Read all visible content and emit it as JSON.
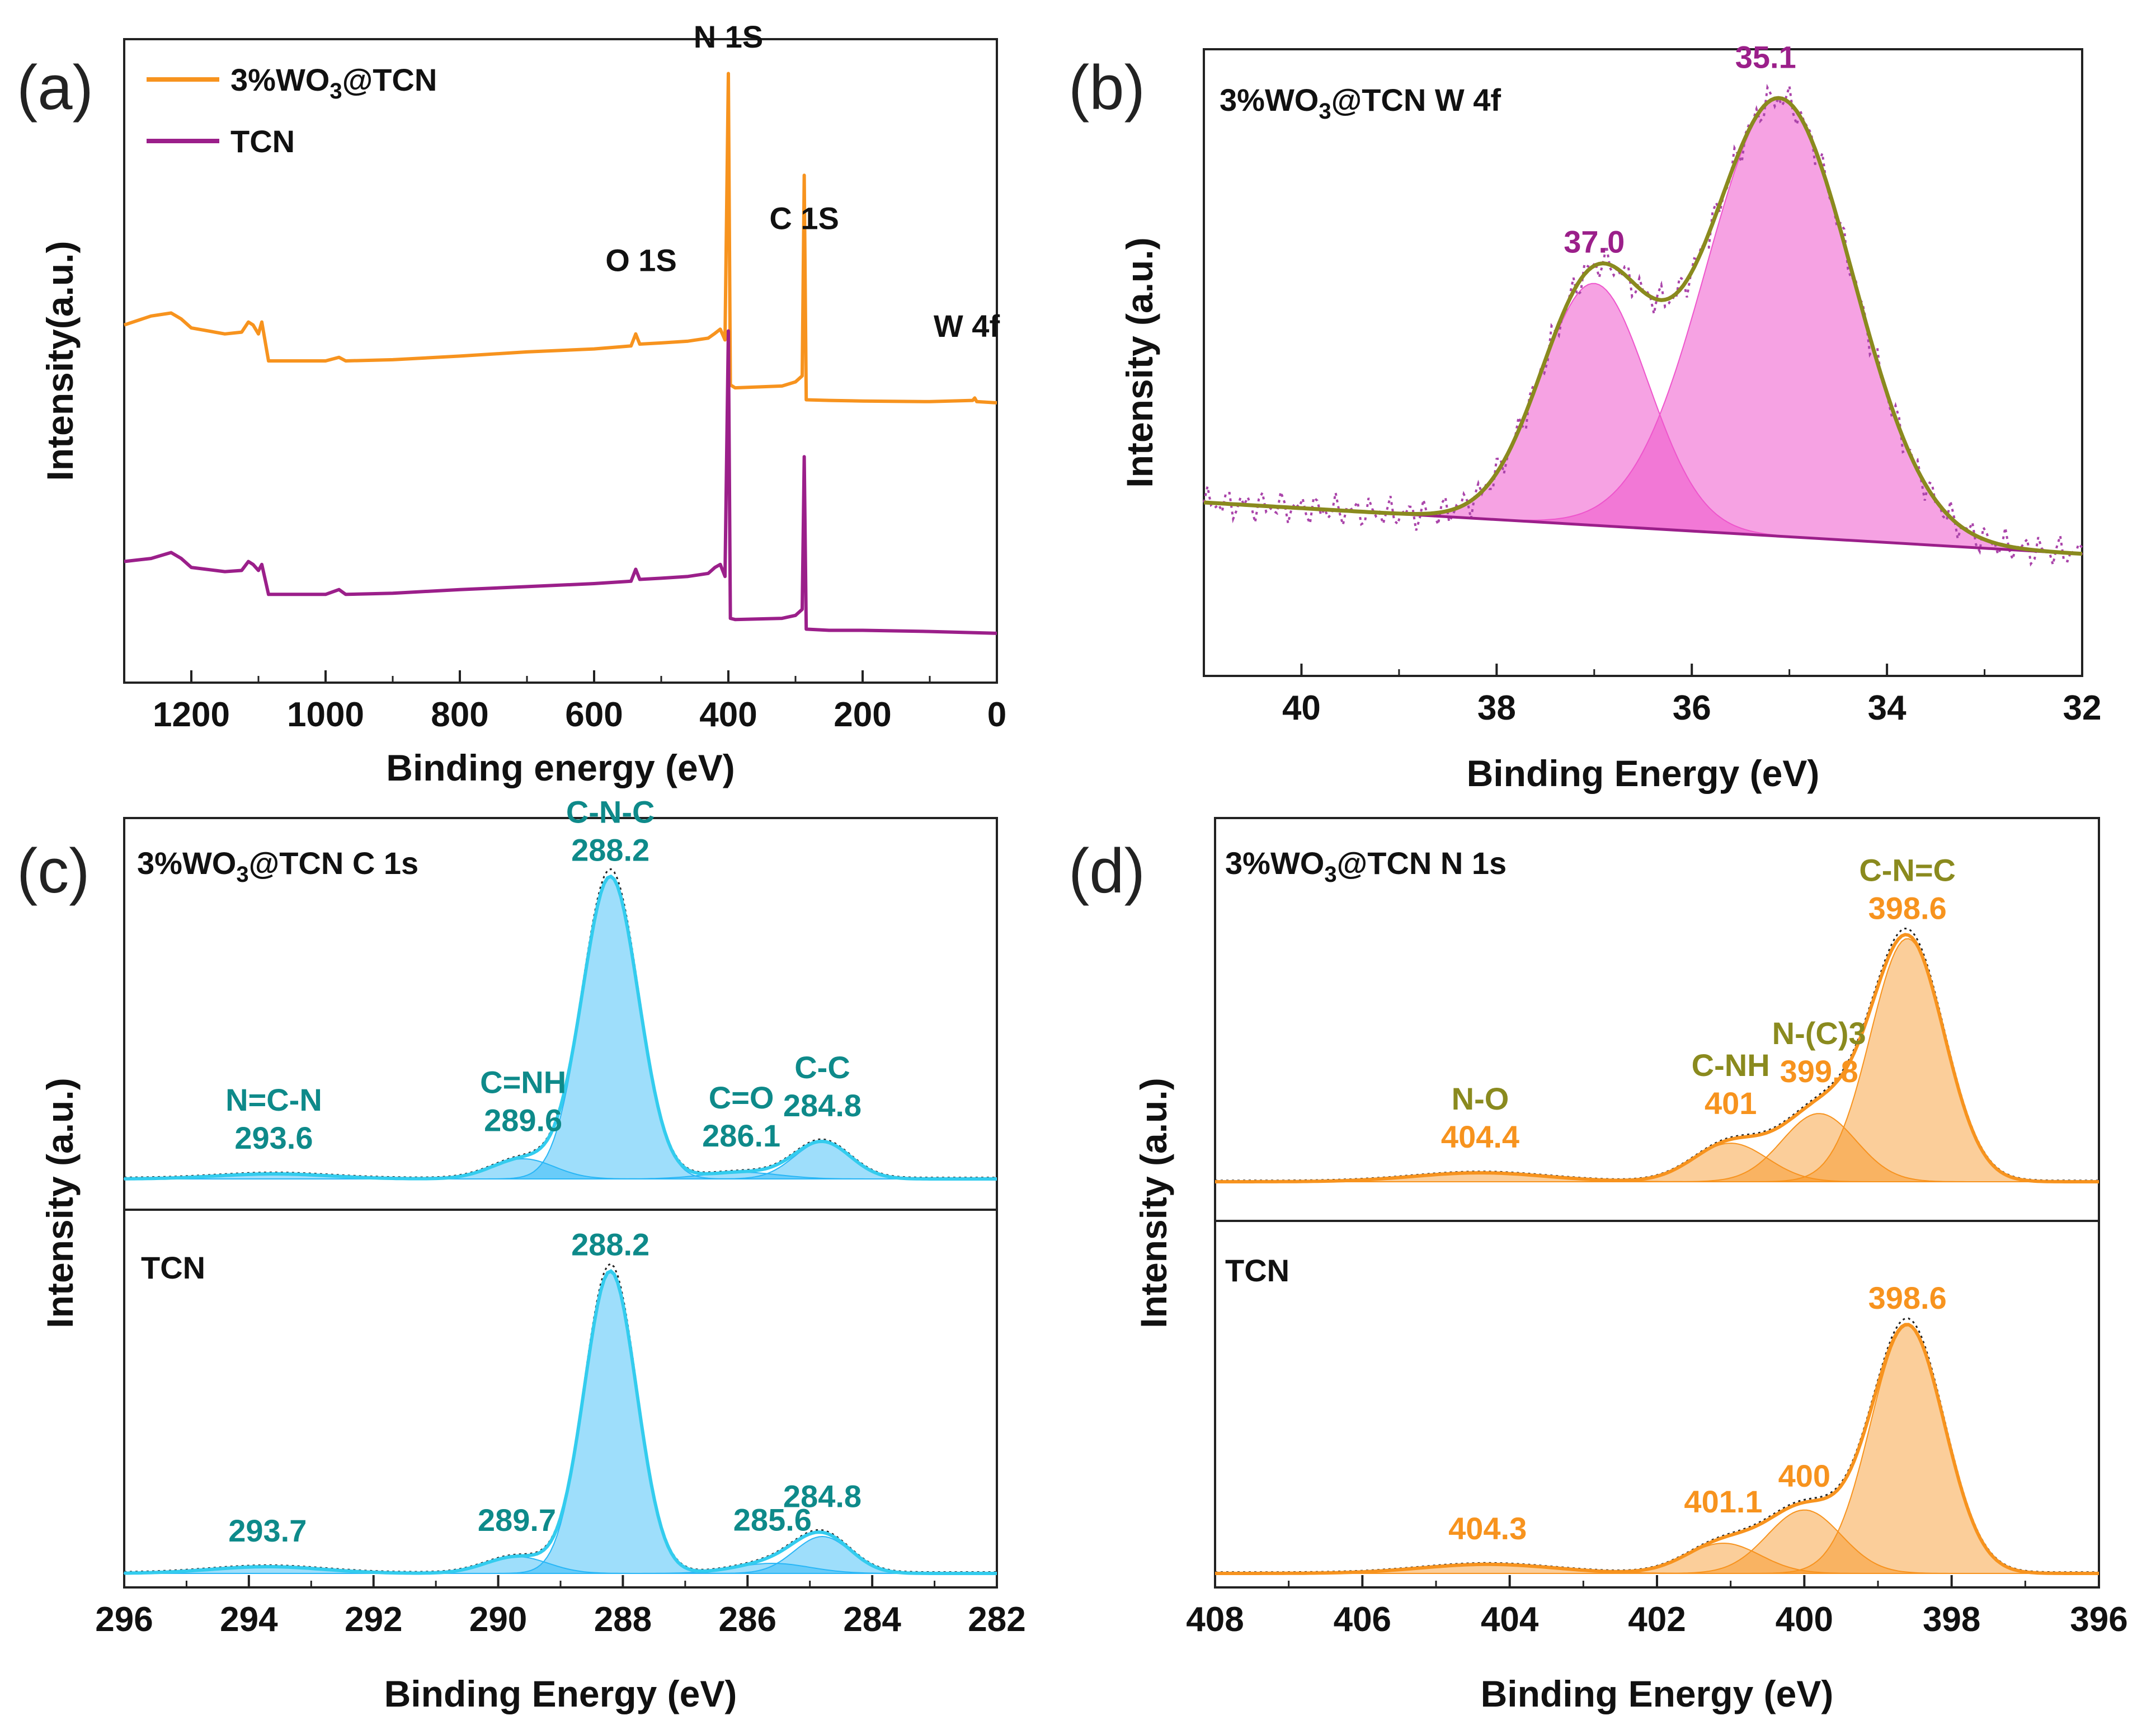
{
  "figure": {
    "panel_labels": [
      "(a)",
      "(b)",
      "(c)",
      "(d)"
    ]
  },
  "chart_data": [
    {
      "panel": "(a)",
      "type": "line",
      "xlabel": "Binding energy (eV)",
      "ylabel": "Intensity(a.u.)",
      "xlim": [
        1300,
        0
      ],
      "xticks": [
        1200,
        1000,
        800,
        600,
        400,
        200,
        0
      ],
      "series": [
        {
          "name": "3%WO3@TCN",
          "legend": {
            "main": "3%WO",
            "sub": "3",
            "rest": "@TCN"
          },
          "color": "#f7931e",
          "baseline": 0.56,
          "points": [
            [
              1300,
              0.56
            ],
            [
              1260,
              0.575
            ],
            [
              1230,
              0.58
            ],
            [
              1215,
              0.57
            ],
            [
              1200,
              0.555
            ],
            [
              1150,
              0.545
            ],
            [
              1125,
              0.548
            ],
            [
              1115,
              0.565
            ],
            [
              1108,
              0.56
            ],
            [
              1100,
              0.545
            ],
            [
              1095,
              0.565
            ],
            [
              1085,
              0.5
            ],
            [
              1050,
              0.5
            ],
            [
              1000,
              0.5
            ],
            [
              980,
              0.506
            ],
            [
              970,
              0.5
            ],
            [
              900,
              0.502
            ],
            [
              800,
              0.508
            ],
            [
              700,
              0.515
            ],
            [
              600,
              0.52
            ],
            [
              545,
              0.525
            ],
            [
              538,
              0.545
            ],
            [
              532,
              0.528
            ],
            [
              500,
              0.53
            ],
            [
              460,
              0.533
            ],
            [
              430,
              0.538
            ],
            [
              420,
              0.546
            ],
            [
              412,
              0.553
            ],
            [
              405,
              0.535
            ],
            [
              400,
              0.98
            ],
            [
              397,
              0.46
            ],
            [
              390,
              0.455
            ],
            [
              320,
              0.458
            ],
            [
              300,
              0.465
            ],
            [
              290,
              0.475
            ],
            [
              287,
              0.81
            ],
            [
              284,
              0.435
            ],
            [
              250,
              0.434
            ],
            [
              200,
              0.433
            ],
            [
              100,
              0.432
            ],
            [
              36,
              0.434
            ],
            [
              33,
              0.438
            ],
            [
              30,
              0.432
            ],
            [
              0,
              0.43
            ]
          ]
        },
        {
          "name": "TCN",
          "legend": {
            "main": "TCN",
            "sub": "",
            "rest": ""
          },
          "color": "#9b1f8a",
          "baseline": 0.06,
          "points": [
            [
              1300,
              0.165
            ],
            [
              1260,
              0.17
            ],
            [
              1230,
              0.18
            ],
            [
              1215,
              0.17
            ],
            [
              1200,
              0.155
            ],
            [
              1150,
              0.148
            ],
            [
              1125,
              0.15
            ],
            [
              1115,
              0.165
            ],
            [
              1108,
              0.16
            ],
            [
              1100,
              0.15
            ],
            [
              1095,
              0.16
            ],
            [
              1085,
              0.11
            ],
            [
              1000,
              0.11
            ],
            [
              980,
              0.118
            ],
            [
              970,
              0.11
            ],
            [
              900,
              0.112
            ],
            [
              800,
              0.118
            ],
            [
              700,
              0.123
            ],
            [
              600,
              0.128
            ],
            [
              545,
              0.132
            ],
            [
              538,
              0.152
            ],
            [
              532,
              0.135
            ],
            [
              500,
              0.137
            ],
            [
              460,
              0.14
            ],
            [
              430,
              0.145
            ],
            [
              420,
              0.155
            ],
            [
              412,
              0.16
            ],
            [
              405,
              0.14
            ],
            [
              400,
              0.55
            ],
            [
              397,
              0.07
            ],
            [
              390,
              0.068
            ],
            [
              320,
              0.07
            ],
            [
              300,
              0.075
            ],
            [
              290,
              0.085
            ],
            [
              287,
              0.34
            ],
            [
              284,
              0.052
            ],
            [
              250,
              0.05
            ],
            [
              200,
              0.05
            ],
            [
              100,
              0.048
            ],
            [
              0,
              0.045
            ]
          ]
        }
      ],
      "annotations": [
        {
          "text": "N 1S",
          "x": 400,
          "y": 1.0
        },
        {
          "text": "O 1S",
          "x": 530,
          "y": 0.65
        },
        {
          "text": "C 1S",
          "x": 287,
          "y": 0.72
        },
        {
          "text": "W 4f",
          "x": 45,
          "y": 0.54
        }
      ]
    },
    {
      "panel": "(b)",
      "type": "line",
      "title": {
        "main": "3%WO",
        "sub": "3",
        "rest": "@TCN  W 4f"
      },
      "xlabel": "Binding Energy (eV)",
      "ylabel": "Intensity  (a.u.)",
      "xlim": [
        41,
        32
      ],
      "xticks": [
        40,
        38,
        36,
        34,
        32
      ],
      "baseline": {
        "x": [
          41,
          32
        ],
        "y": [
          0.25,
          0.15
        ]
      },
      "peaks": [
        {
          "center": 37.0,
          "height": 0.47,
          "width": 0.55,
          "color": "#ee55cc",
          "label": "37.0"
        },
        {
          "center": 35.1,
          "height": 0.85,
          "width": 0.75,
          "color": "#ee55cc",
          "label": "35.1"
        }
      ],
      "envelope_color": "#8a8a1e",
      "raw_color": "#aa44aa",
      "label_color": "#9b1f8a"
    },
    {
      "panel": "(c)",
      "type": "line",
      "xlabel": "Binding Energy (eV)",
      "ylabel": "Intensity  (a.u.)",
      "xlim": [
        296,
        282
      ],
      "xticks": [
        296,
        294,
        292,
        290,
        288,
        286,
        284,
        282
      ],
      "label_color": "#0e8a8a",
      "fill_color": "#29b6f6",
      "envelope_color": "#33ccee",
      "subplots": [
        {
          "title": {
            "main": "3%WO",
            "sub": "3",
            "rest": "@TCN  C 1s"
          },
          "peaks": [
            {
              "center": 293.6,
              "height": 0.015,
              "width": 0.9,
              "name": "N=C-N",
              "value": "293.6"
            },
            {
              "center": 289.6,
              "height": 0.06,
              "width": 0.5,
              "name": "C=NH",
              "value": "289.6"
            },
            {
              "center": 288.2,
              "height": 0.9,
              "width": 0.45,
              "name": "C-N-C",
              "value": "288.2"
            },
            {
              "center": 286.1,
              "height": 0.02,
              "width": 0.6,
              "name": "C=O",
              "value": "286.1"
            },
            {
              "center": 284.8,
              "height": 0.11,
              "width": 0.45,
              "name": "C-C",
              "value": "284.8"
            }
          ]
        },
        {
          "title": {
            "main": "TCN",
            "sub": "",
            "rest": ""
          },
          "peaks": [
            {
              "center": 293.7,
              "height": 0.02,
              "width": 0.9,
              "name": "",
              "value": "293.7"
            },
            {
              "center": 289.7,
              "height": 0.05,
              "width": 0.5,
              "name": "",
              "value": "289.7"
            },
            {
              "center": 288.2,
              "height": 0.9,
              "width": 0.42,
              "name": "",
              "value": "288.2"
            },
            {
              "center": 285.6,
              "height": 0.03,
              "width": 0.6,
              "name": "",
              "value": "285.6"
            },
            {
              "center": 284.8,
              "height": 0.11,
              "width": 0.45,
              "name": "",
              "value": "284.8"
            }
          ]
        }
      ]
    },
    {
      "panel": "(d)",
      "type": "line",
      "xlabel": "Binding Energy (eV)",
      "ylabel": "Intensity  (a.u.)",
      "xlim": [
        408,
        396
      ],
      "xticks": [
        408,
        406,
        404,
        402,
        400,
        398,
        396
      ],
      "label_color_name": "#8a8a1e",
      "label_color_value": "#f7931e",
      "fill_color": "#f7931e",
      "envelope_color": "#f7931e",
      "subplots": [
        {
          "title": {
            "main": "3%WO",
            "sub": "3",
            "rest": "@TCN  N 1s"
          },
          "peaks": [
            {
              "center": 404.4,
              "height": 0.03,
              "width": 0.9,
              "name": "N-O",
              "value": "404.4"
            },
            {
              "center": 401.0,
              "height": 0.13,
              "width": 0.5,
              "name": "C-NH",
              "value": "401"
            },
            {
              "center": 399.8,
              "height": 0.23,
              "width": 0.5,
              "name": "N-(C)3",
              "value": "399.8"
            },
            {
              "center": 398.6,
              "height": 0.82,
              "width": 0.5,
              "name": "C-N=C",
              "value": "398.6"
            }
          ]
        },
        {
          "title": {
            "main": "TCN",
            "sub": "",
            "rest": ""
          },
          "peaks": [
            {
              "center": 404.3,
              "height": 0.03,
              "width": 0.9,
              "name": "",
              "value": "404.3"
            },
            {
              "center": 401.1,
              "height": 0.1,
              "width": 0.5,
              "name": "",
              "value": "401.1"
            },
            {
              "center": 400.0,
              "height": 0.21,
              "width": 0.5,
              "name": "",
              "value": "400"
            },
            {
              "center": 398.6,
              "height": 0.82,
              "width": 0.5,
              "name": "",
              "value": "398.6"
            }
          ]
        }
      ]
    }
  ]
}
